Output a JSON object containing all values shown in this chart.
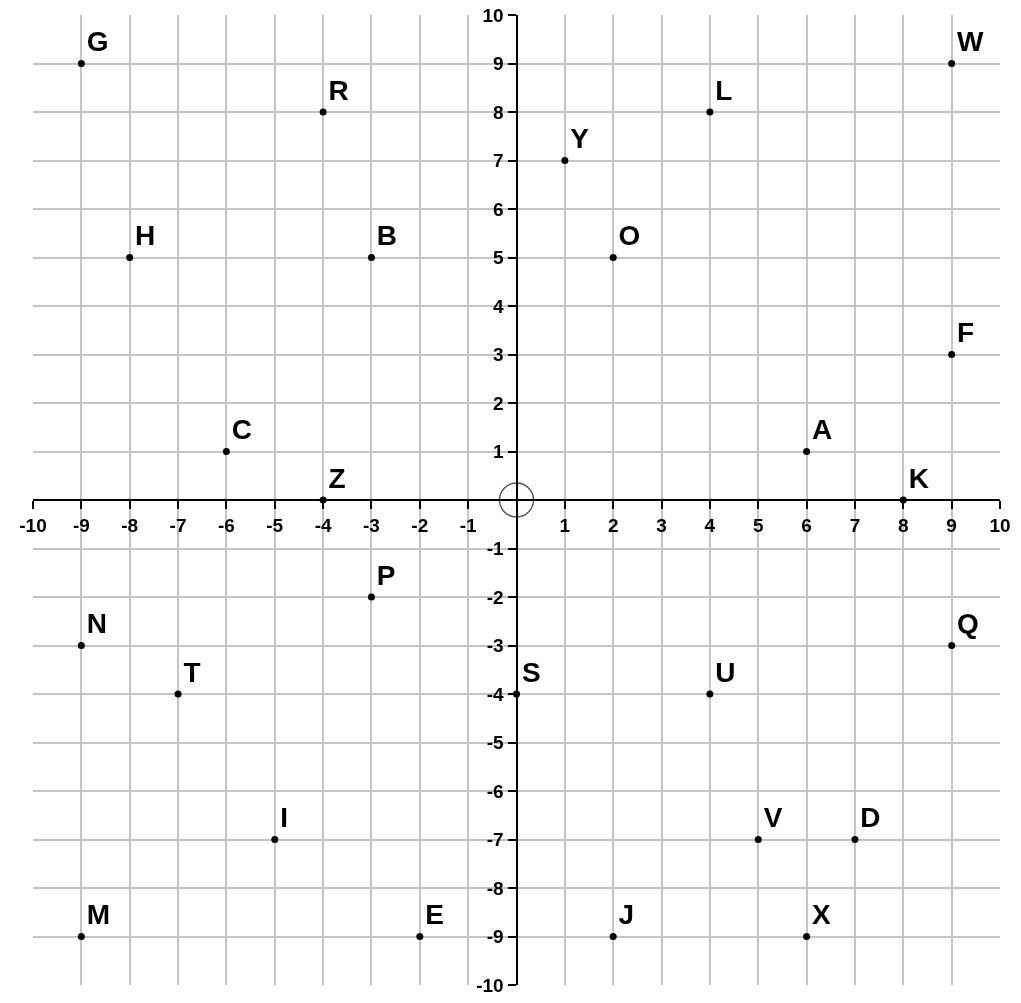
{
  "chart_data": {
    "type": "scatter",
    "xlim": [
      -10,
      10
    ],
    "ylim": [
      -10,
      10
    ],
    "xticks": [
      -10,
      -9,
      -8,
      -7,
      -6,
      -5,
      -4,
      -3,
      -2,
      -1,
      1,
      2,
      3,
      4,
      5,
      6,
      7,
      8,
      9,
      10
    ],
    "yticks": [
      -10,
      -9,
      -8,
      -7,
      -6,
      -5,
      -4,
      -3,
      -2,
      -1,
      1,
      2,
      3,
      4,
      5,
      6,
      7,
      8,
      9,
      10
    ],
    "grid": true,
    "series": [
      {
        "color": "#000000",
        "marker": "circle",
        "x": [
          -9,
          -4,
          4,
          9,
          1,
          -8,
          -3,
          2,
          9,
          -6,
          6,
          -4,
          8,
          -3,
          -9,
          9,
          -7,
          0,
          4,
          -5,
          5,
          7,
          -9,
          -2,
          2,
          6
        ],
        "values": [
          9,
          8,
          8,
          9,
          7,
          5,
          5,
          5,
          3,
          1,
          1,
          0,
          0,
          -2,
          -3,
          -3,
          -4,
          -4,
          -4,
          -7,
          -7,
          -7,
          -9,
          -9,
          -9,
          -9
        ],
        "value_labels": [
          "G",
          "R",
          "L",
          "W",
          "Y",
          "H",
          "B",
          "O",
          "F",
          "C",
          "A",
          "Z",
          "K",
          "P",
          "N",
          "Q",
          "T",
          "S",
          "U",
          "I",
          "V",
          "D",
          "M",
          "E",
          "J",
          "X"
        ]
      },
      {
        "color": "#555555",
        "marker": "circle",
        "x": [
          0
        ],
        "values": [
          0
        ]
      }
    ]
  }
}
